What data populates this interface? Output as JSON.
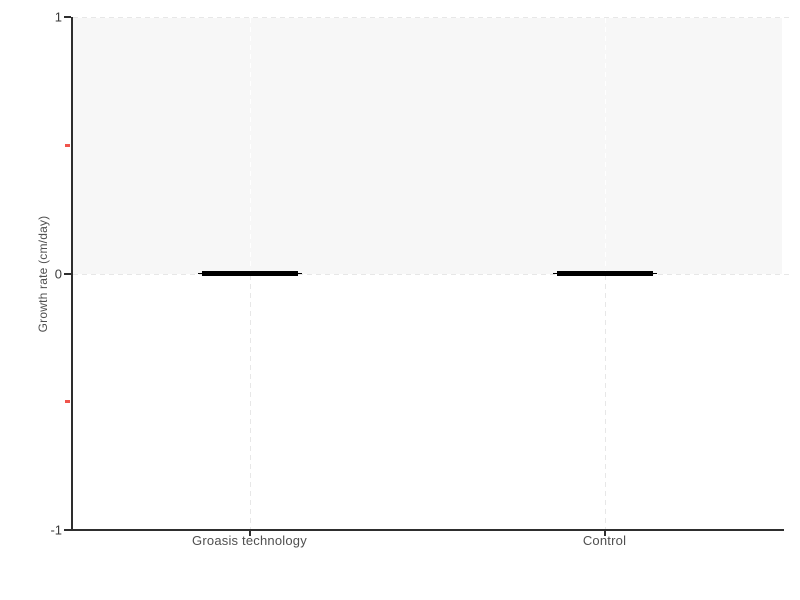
{
  "chart_data": {
    "type": "box",
    "title": "",
    "xlabel": "",
    "ylabel": "Growth rate (cm/day)",
    "categories": [
      "Groasis technology",
      "Control"
    ],
    "series": [
      {
        "name": "Growth rate",
        "values": [
          0,
          0
        ]
      }
    ],
    "ylim": [
      -1,
      1
    ],
    "yticks": [
      {
        "value": 1,
        "label": "1"
      },
      {
        "value": 0,
        "label": "0"
      },
      {
        "value": -1,
        "label": "-1"
      }
    ],
    "minor_yticks": [
      0.5,
      -0.5
    ],
    "grid": "dashed",
    "legend_position": "none",
    "band": {
      "from": 0,
      "to": 1
    }
  },
  "colors": {
    "axis": "#2e2e2e",
    "tick_text": "#3a3a3a",
    "label_text": "#4f4f4f",
    "grid": "#e7e7e7",
    "grid_on_band": "#ffffff",
    "band_fill": "#f7f7f7",
    "minor_tick": "#f0544c",
    "series": "#000000",
    "background": "#ffffff"
  }
}
